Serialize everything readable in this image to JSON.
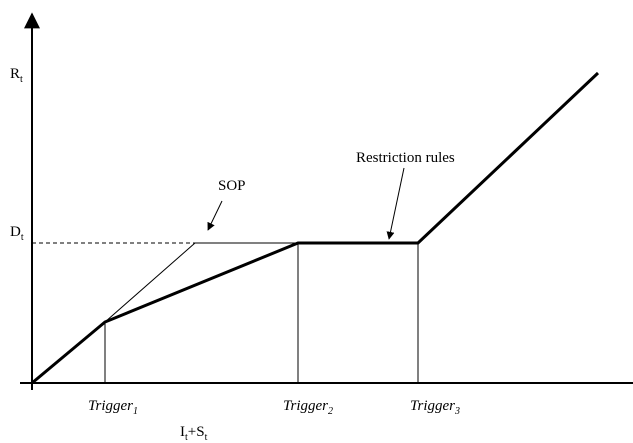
{
  "axes": {
    "y_label": {
      "text": "R",
      "sub": "t"
    },
    "x_label": {
      "text": "I",
      "sub": "t",
      "text2": "+S",
      "sub2": "t"
    }
  },
  "levels": {
    "d_label": {
      "text": "D",
      "sub": "t"
    }
  },
  "annotations": {
    "sop": "SOP",
    "restriction": "Restriction rules"
  },
  "triggers": [
    {
      "text": "Trigger",
      "sub": "1"
    },
    {
      "text": "Trigger",
      "sub": "2"
    },
    {
      "text": "Trigger",
      "sub": "3"
    }
  ]
}
